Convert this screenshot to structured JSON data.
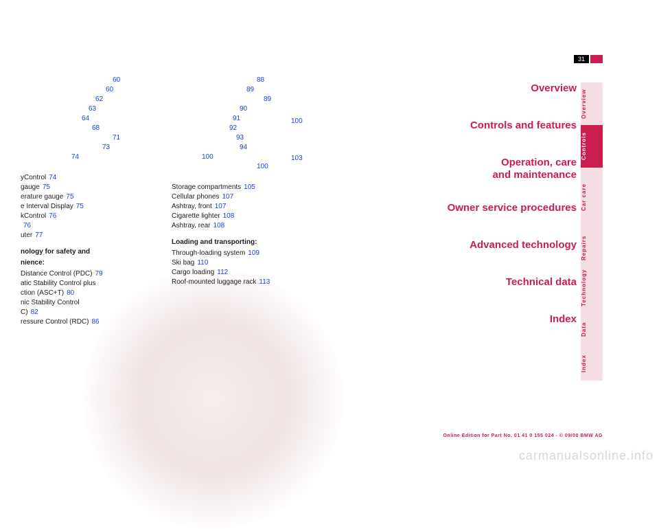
{
  "page_number": "31",
  "col1": [
    {
      "text": "Control",
      "pg": "74",
      "type": "entry",
      "prefix": "y"
    },
    {
      "text": "gauge",
      "pg": "75",
      "type": "entry"
    },
    {
      "text": "erature gauge",
      "pg": "75",
      "type": "entry"
    },
    {
      "text": "e Interval Display",
      "pg": "75",
      "type": "entry"
    },
    {
      "text": "Control",
      "pg": "76",
      "type": "entry",
      "prefix": "k"
    },
    {
      "text": "",
      "pg": "76",
      "type": "entry"
    },
    {
      "text": "uter",
      "pg": "77",
      "type": "entry"
    },
    {
      "text": "nology for safety and",
      "type": "head"
    },
    {
      "text": "nience:",
      "type": "head2"
    },
    {
      "text": "Distance Control (PDC)",
      "pg": "79",
      "type": "entry"
    },
    {
      "text": "atic Stability Control plus",
      "type": "entry-noPg"
    },
    {
      "text": "ction (ASC+T)",
      "pg": "80",
      "type": "entry"
    },
    {
      "text": "nic Stability Control",
      "type": "entry-noPg"
    },
    {
      "text": "C)",
      "pg": "82",
      "type": "entry"
    },
    {
      "text": "ressure Control (RDC)",
      "pg": "86",
      "type": "entry"
    }
  ],
  "col1_upper_refs": [
    "60",
    "60",
    "62",
    "63",
    "64",
    "68",
    "71",
    "73",
    "74"
  ],
  "col2_upper_refs": [
    "88",
    "89",
    "89",
    "90",
    "91",
    "92",
    "93",
    "94",
    "100",
    "100"
  ],
  "col2_upper_refs_right": [
    "100",
    "103"
  ],
  "col2": [
    {
      "text": "Storage compartments",
      "pg": "105",
      "type": "entry"
    },
    {
      "text": "Cellular phones",
      "pg": "107",
      "type": "entry"
    },
    {
      "text": "Ashtray, front",
      "pg": "107",
      "type": "entry"
    },
    {
      "text": "Cigarette lighter",
      "pg": "108",
      "type": "entry"
    },
    {
      "text": "Ashtray, rear",
      "pg": "108",
      "type": "entry"
    },
    {
      "text": "Loading and transporting:",
      "type": "head"
    },
    {
      "text": "Through-loading system",
      "pg": "109",
      "type": "entry"
    },
    {
      "text": "Ski bag",
      "pg": "110",
      "type": "entry"
    },
    {
      "text": "Cargo loading",
      "pg": "112",
      "type": "entry"
    },
    {
      "text": "Roof-mounted luggage rack",
      "pg": "113",
      "type": "entry"
    }
  ],
  "nav": {
    "overview": "Overview",
    "controls": "Controls and features",
    "operation1": "Operation, care",
    "operation2": "and maintenance",
    "owner": "Owner service procedures",
    "advanced": "Advanced technology",
    "technical": "Technical data",
    "index": "Index"
  },
  "tabs": {
    "overview": "Overview",
    "controls": "Controls",
    "carcare": "Car care",
    "repairs": "Repairs",
    "technology": "Technology",
    "data": "Data",
    "index": "Index"
  },
  "footer": "Online Edition for Part No. 01 41 0 155 024 - © 09/00 BMW AG",
  "watermark": "carmanualsonline.info",
  "colors": {
    "accent": "#c91e4e",
    "link": "#1a3fe0",
    "tab_bg": "#f5dde4",
    "tab_active_bg": "#c91e4e"
  }
}
